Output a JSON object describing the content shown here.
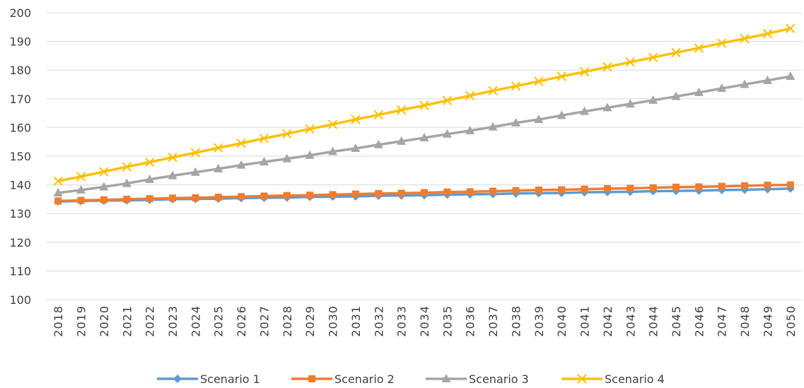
{
  "chart_data": {
    "type": "line",
    "title": "",
    "xlabel": "",
    "ylabel": "",
    "ylim": [
      100,
      200
    ],
    "yticks": [
      100,
      110,
      120,
      130,
      140,
      150,
      160,
      170,
      180,
      190,
      200
    ],
    "grid": "horizontal",
    "legend_position": "bottom",
    "x": [
      "2018",
      "2019",
      "2020",
      "2021",
      "2022",
      "2023",
      "2024",
      "2025",
      "2026",
      "2027",
      "2028",
      "2029",
      "2030",
      "2031",
      "2032",
      "2033",
      "2034",
      "2035",
      "2036",
      "2037",
      "2038",
      "2039",
      "2040",
      "2041",
      "2042",
      "2043",
      "2044",
      "2045",
      "2046",
      "2047",
      "2048",
      "2049",
      "2050"
    ],
    "series": [
      {
        "name": "Scenario 1",
        "color": "#5B9BD5",
        "marker": "diamond",
        "values": [
          134.2,
          134.4,
          134.5,
          134.6,
          134.8,
          135.0,
          135.1,
          135.2,
          135.4,
          135.5,
          135.6,
          135.8,
          135.9,
          136.0,
          136.2,
          136.3,
          136.4,
          136.6,
          136.7,
          136.8,
          137.0,
          137.1,
          137.2,
          137.4,
          137.5,
          137.6,
          137.8,
          137.9,
          138.0,
          138.2,
          138.3,
          138.5,
          138.7
        ]
      },
      {
        "name": "Scenario 2",
        "color": "#ED7D31",
        "marker": "square",
        "values": [
          134.4,
          134.6,
          134.8,
          135.0,
          135.2,
          135.4,
          135.5,
          135.7,
          135.9,
          136.1,
          136.3,
          136.4,
          136.6,
          136.8,
          137.0,
          137.1,
          137.3,
          137.5,
          137.6,
          137.8,
          138.0,
          138.2,
          138.3,
          138.5,
          138.7,
          138.8,
          139.0,
          139.2,
          139.3,
          139.5,
          139.7,
          139.9,
          140.0
        ]
      },
      {
        "name": "Scenario 3",
        "color": "#A5A5A5",
        "marker": "triangle",
        "values": [
          137.2,
          138.2,
          139.3,
          140.5,
          141.9,
          143.2,
          144.4,
          145.6,
          146.9,
          148.0,
          149.1,
          150.3,
          151.6,
          152.7,
          154.0,
          155.2,
          156.4,
          157.7,
          158.9,
          160.2,
          161.6,
          162.8,
          164.2,
          165.6,
          166.9,
          168.2,
          169.5,
          170.8,
          172.2,
          173.6,
          175.0,
          176.4,
          177.8
        ]
      },
      {
        "name": "Scenario 4",
        "color": "#FFC000",
        "marker": "x",
        "values": [
          141.3,
          142.9,
          144.6,
          146.3,
          147.9,
          149.6,
          151.2,
          152.9,
          154.5,
          156.2,
          157.8,
          159.5,
          161.1,
          162.8,
          164.4,
          166.1,
          167.7,
          169.4,
          171.1,
          172.8,
          174.4,
          176.1,
          177.8,
          179.4,
          181.1,
          182.8,
          184.4,
          186.1,
          187.7,
          189.4,
          191.0,
          192.7,
          194.5
        ]
      }
    ]
  }
}
